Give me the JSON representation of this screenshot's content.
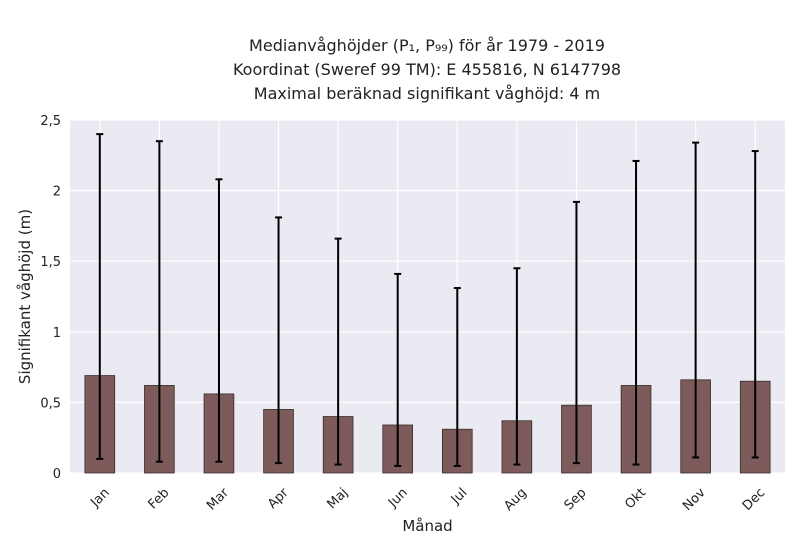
{
  "chart_data": {
    "type": "bar",
    "title_lines": [
      "Medianvåghöjder (P₁, P₉₉) för år 1979 - 2019",
      "Koordinat (Sweref 99 TM): E 455816, N 6147798",
      "Maximal beräknad signifikant våghöjd: 4 m"
    ],
    "xlabel": "Månad",
    "ylabel": "Signifikant våghöjd (m)",
    "categories": [
      "Jan",
      "Feb",
      "Mar",
      "Apr",
      "Maj",
      "Jun",
      "Jul",
      "Aug",
      "Sep",
      "Okt",
      "Nov",
      "Dec"
    ],
    "values": [
      0.69,
      0.62,
      0.56,
      0.45,
      0.4,
      0.34,
      0.31,
      0.37,
      0.48,
      0.62,
      0.66,
      0.65
    ],
    "error_low": [
      0.1,
      0.08,
      0.08,
      0.07,
      0.06,
      0.05,
      0.05,
      0.06,
      0.07,
      0.06,
      0.11,
      0.11
    ],
    "error_high": [
      2.4,
      2.35,
      2.08,
      1.81,
      1.66,
      1.41,
      1.31,
      1.45,
      1.92,
      2.21,
      2.34,
      2.28
    ],
    "yticks": [
      "0",
      "0,5",
      "1",
      "1,5",
      "2",
      "2,5"
    ],
    "ytick_values": [
      0,
      0.5,
      1,
      1.5,
      2,
      2.5
    ],
    "ylim": [
      0,
      2.5
    ],
    "grid": true,
    "colors": {
      "bar": "#7e5b5b",
      "bar_edge": "#3a2a2a",
      "errorbar": "#000000",
      "plot_bg": "#eaeaf2",
      "grid": "#ffffff"
    }
  }
}
